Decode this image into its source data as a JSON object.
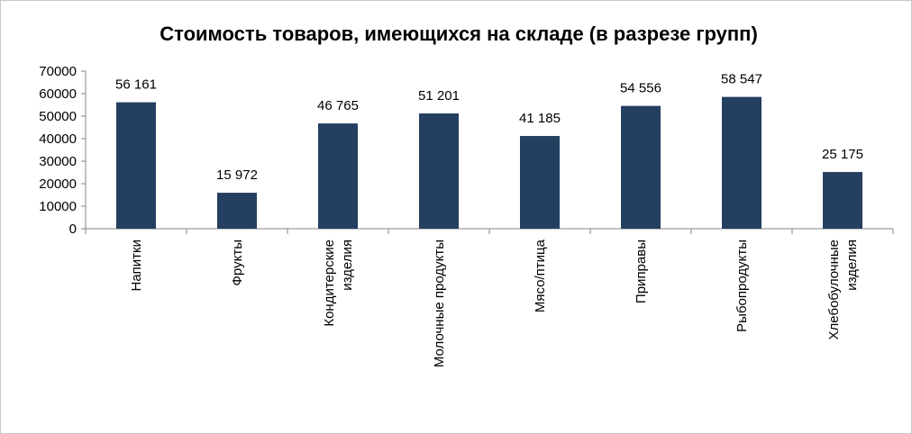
{
  "chart_data": {
    "type": "bar",
    "title": "Стоимость товаров, имеющихся на складе (в разрезе групп)",
    "categories": [
      [
        "Напитки"
      ],
      [
        "Фрукты"
      ],
      [
        "Кондитерские",
        "изделия"
      ],
      [
        "Молочные продукты"
      ],
      [
        "Мясо/птица"
      ],
      [
        "Приправы"
      ],
      [
        "Рыбопродукты"
      ],
      [
        "Хлебобулочные",
        "изделия"
      ]
    ],
    "values": [
      56161,
      15972,
      46765,
      51201,
      41185,
      54556,
      58547,
      25175
    ],
    "data_labels": [
      "56 161",
      "15 972",
      "46 765",
      "51 201",
      "41 185",
      "54 556",
      "58 547",
      "25 175"
    ],
    "yticks": [
      "0",
      "10000",
      "20000",
      "30000",
      "40000",
      "50000",
      "60000",
      "70000"
    ],
    "ylim": [
      0,
      70000
    ],
    "xlabel": "",
    "ylabel": "",
    "grid": false,
    "legend": "none",
    "bar_color": "#243F60",
    "axis_color": "#868686"
  }
}
